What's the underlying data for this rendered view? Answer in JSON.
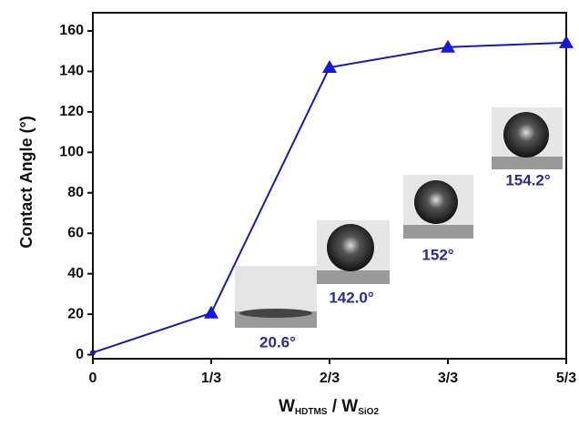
{
  "chart_data": {
    "type": "line",
    "y_label": "Contact Angle (°)",
    "x_label": {
      "w1": "W",
      "sub1": "HDTMS",
      "w2": " / W",
      "sub2": "SiO2"
    },
    "categories": [
      "0",
      "1/3",
      "2/3",
      "3/3",
      "5/3"
    ],
    "values": [
      1,
      20.6,
      142.0,
      152,
      154.2
    ],
    "value_labels": [
      null,
      "20.6°",
      "142.0°",
      "152°",
      "154.2°"
    ],
    "color": "#1a1aa8",
    "ylim": [
      -2,
      169
    ],
    "yticks": [
      0,
      20,
      40,
      60,
      80,
      100,
      120,
      140,
      160
    ]
  }
}
